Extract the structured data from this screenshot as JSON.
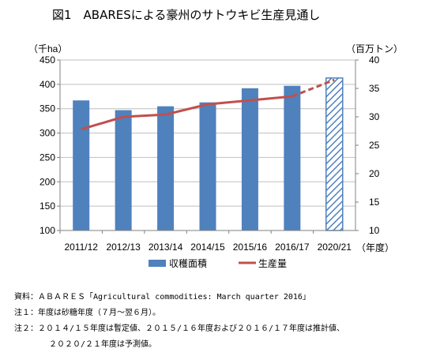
{
  "title": "図1　ABARESによる豪州のサトウキビ生産見通し",
  "chart_data": {
    "type": "bar",
    "categories": [
      "2011/12",
      "2012/13",
      "2013/14",
      "2014/15",
      "2015/16",
      "2016/17",
      "2020/21"
    ],
    "x_suffix": "（年度）",
    "y_left": {
      "unit_label": "（千ha）",
      "min": 100,
      "max": 450,
      "ticks": [
        100,
        150,
        200,
        250,
        300,
        350,
        400,
        450
      ]
    },
    "y_right": {
      "unit_label": "（百万トン）",
      "min": 10,
      "max": 40,
      "ticks": [
        10,
        15,
        20,
        25,
        30,
        35,
        40
      ]
    },
    "series": [
      {
        "name": "収穫面積",
        "type": "bar",
        "axis": "left",
        "color": "#4f81bd",
        "values": [
          367,
          347,
          355,
          363,
          392,
          397,
          413
        ],
        "forecast_index": 6
      },
      {
        "name": "生産量",
        "type": "line",
        "axis": "right",
        "color": "#c0504d",
        "values": [
          27.8,
          30.0,
          30.4,
          32.2,
          32.9,
          33.6,
          36.5
        ],
        "dashed_from_index": 5
      }
    ],
    "legend": "bottom",
    "grid": true
  },
  "notes": {
    "source": "資料：ＡＢＡＲＥＳ「Agricultural commodities: March quarter 2016」",
    "note1": "注１：年度は砂糖年度（７月～翌６月）。",
    "note2_line1": "注２：２０１４/１５年度は暫定値、２０１５/１６年度および２０１６/１７年度は推計値、",
    "note2_line2": "２０２０/２１年度は予測値。"
  }
}
